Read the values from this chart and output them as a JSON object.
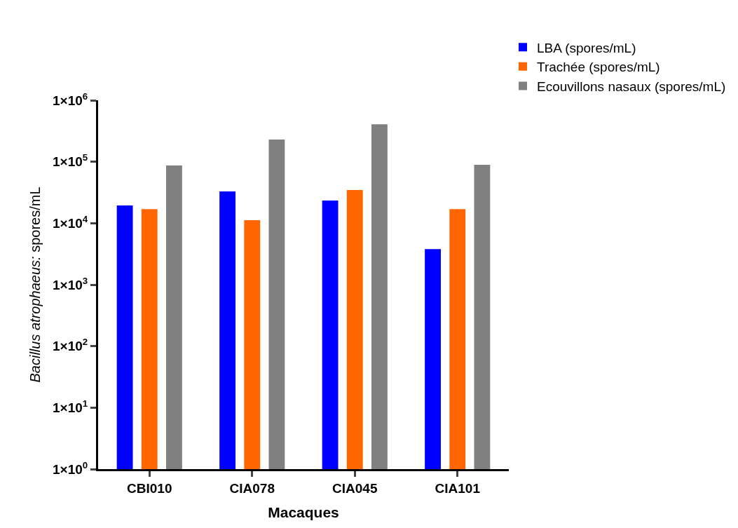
{
  "chart_data": {
    "type": "bar",
    "xlabel": "Macaques",
    "ylabel": "Bacillus atrophaeus: spores/mL",
    "categories": [
      "CBI010",
      "CIA078",
      "CIA045",
      "CIA101"
    ],
    "series": [
      {
        "name": "LBA (spores/mL)",
        "color": "#0000ff",
        "values": [
          19500,
          33000,
          23400,
          3800
        ]
      },
      {
        "name": "Trachée (spores/mL)",
        "color": "#ff6600",
        "values": [
          17000,
          11200,
          34600,
          17000
        ]
      },
      {
        "name": "Ecouvillons nasaux (spores/mL)",
        "color": "#808080",
        "values": [
          87000,
          229000,
          407000,
          89000
        ]
      }
    ],
    "log": "y",
    "ylim": [
      1,
      1000000
    ],
    "yticks": [
      {
        "value": 1,
        "label": "1×10$^{0}$"
      },
      {
        "value": 10,
        "label": "1×10$^{1}$"
      },
      {
        "value": 100,
        "label": "1×10$^{2}$"
      },
      {
        "value": 1000,
        "label": "1×10$^{3}$"
      },
      {
        "value": 10000,
        "label": "1×10$^{4}$"
      },
      {
        "value": 100000,
        "label": "1×10$^{5}$"
      },
      {
        "value": 1000000,
        "label": "1×10$^{6}$"
      }
    ],
    "grid": false,
    "legend": "top right"
  }
}
